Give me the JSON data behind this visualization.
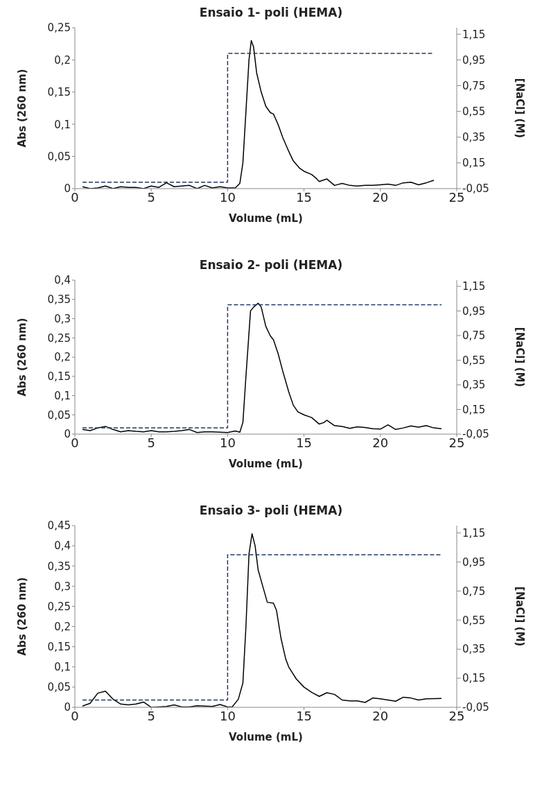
{
  "chart_data": [
    {
      "type": "line",
      "title": "Ensaio 1- poli (HEMA)",
      "xlabel": "Volume (mL)",
      "ylabel": "Abs (260 nm)",
      "y2label": "[NaCl] (M)",
      "xlim": [
        0,
        25
      ],
      "xticks": [
        0,
        5,
        10,
        15,
        20,
        25
      ],
      "ylim": [
        0,
        0.25
      ],
      "yticks": [
        {
          "value": 0,
          "label": "0"
        },
        {
          "value": 0.05,
          "label": "0,05"
        },
        {
          "value": 0.1,
          "label": "0,1"
        },
        {
          "value": 0.15,
          "label": "0,15"
        },
        {
          "value": 0.2,
          "label": "0,2"
        },
        {
          "value": 0.25,
          "label": "0,25"
        }
      ],
      "y2lim": [
        -0.05,
        1.2
      ],
      "y2ticks": [
        {
          "value": -0.05,
          "label": "-0,05"
        },
        {
          "value": 0.15,
          "label": "0,15"
        },
        {
          "value": 0.35,
          "label": "0,35"
        },
        {
          "value": 0.55,
          "label": "0,55"
        },
        {
          "value": 0.75,
          "label": "0,75"
        },
        {
          "value": 0.95,
          "label": "0,95"
        },
        {
          "value": 1.15,
          "label": "1,15"
        }
      ],
      "grid": false,
      "legend": false,
      "marker": "none",
      "series": [
        {
          "color": "#000000",
          "line_style": "solid",
          "x": [
            0.5,
            1,
            1.5,
            2,
            2.5,
            3,
            3.5,
            4,
            4.5,
            5,
            5.5,
            6,
            6.5,
            7,
            7.5,
            8,
            8.5,
            9,
            9.5,
            10,
            10.5,
            10.8,
            11,
            11.2,
            11.4,
            11.55,
            11.7,
            11.9,
            12.2,
            12.5,
            12.8,
            13,
            13.3,
            13.6,
            14,
            14.3,
            14.7,
            15,
            15.5,
            15.8,
            16,
            16.5,
            17,
            17.5,
            18,
            18.5,
            19,
            19.5,
            20,
            20.5,
            21,
            21.5,
            22,
            22.5,
            23,
            23.5
          ],
          "values": [
            0.003,
            0,
            0.001,
            0.004,
            0,
            0.003,
            0.002,
            0.002,
            0,
            0.004,
            0.002,
            0.009,
            0.003,
            0.004,
            0.005,
            0,
            0.005,
            0.001,
            0.003,
            0.001,
            0.001,
            0.008,
            0.04,
            0.12,
            0.2,
            0.23,
            0.22,
            0.18,
            0.15,
            0.128,
            0.118,
            0.116,
            0.1,
            0.08,
            0.058,
            0.043,
            0.032,
            0.027,
            0.022,
            0.016,
            0.011,
            0.015,
            0.005,
            0.008,
            0.005,
            0.004,
            0.005,
            0.005,
            0.006,
            0.007,
            0.005,
            0.009,
            0.01,
            0.006,
            0.009,
            0.013
          ]
        },
        {
          "type": "step",
          "color": "#1f3864",
          "line_style": "dashed",
          "axis": "y2",
          "x": [
            0.5,
            10,
            23.5
          ],
          "values": [
            0,
            1,
            1
          ]
        }
      ]
    },
    {
      "type": "line",
      "title": "Ensaio 2- poli (HEMA)",
      "xlabel": "Volume (mL)",
      "ylabel": "Abs (260 nm)",
      "y2label": "[NaCl] (M)",
      "xlim": [
        0,
        25
      ],
      "xticks": [
        0,
        5,
        10,
        15,
        20,
        25
      ],
      "ylim": [
        0,
        0.4
      ],
      "yticks": [
        {
          "value": 0,
          "label": "0"
        },
        {
          "value": 0.05,
          "label": "0,05"
        },
        {
          "value": 0.1,
          "label": "0,1"
        },
        {
          "value": 0.15,
          "label": "0,15"
        },
        {
          "value": 0.2,
          "label": "0,2"
        },
        {
          "value": 0.25,
          "label": "0,25"
        },
        {
          "value": 0.3,
          "label": "0,3"
        },
        {
          "value": 0.35,
          "label": "0,35"
        },
        {
          "value": 0.4,
          "label": "0,4"
        }
      ],
      "y2lim": [
        -0.05,
        1.2
      ],
      "y2ticks": [
        {
          "value": -0.05,
          "label": "-0,05"
        },
        {
          "value": 0.15,
          "label": "0,15"
        },
        {
          "value": 0.35,
          "label": "0,35"
        },
        {
          "value": 0.55,
          "label": "0,55"
        },
        {
          "value": 0.75,
          "label": "0,75"
        },
        {
          "value": 0.95,
          "label": "0,95"
        },
        {
          "value": 1.15,
          "label": "1,15"
        }
      ],
      "grid": false,
      "legend": false,
      "marker": "none",
      "series": [
        {
          "color": "#000000",
          "line_style": "solid",
          "x": [
            0.5,
            1,
            1.5,
            2,
            2.5,
            3,
            3.5,
            4,
            4.5,
            5,
            5.5,
            6,
            6.5,
            7,
            7.5,
            8,
            8.5,
            9,
            9.5,
            10,
            10.5,
            10.8,
            11,
            11.2,
            11.5,
            11.7,
            12,
            12.2,
            12.5,
            12.8,
            13,
            13.3,
            13.6,
            14,
            14.3,
            14.6,
            15,
            15.5,
            16,
            16.3,
            16.5,
            17,
            17.5,
            18,
            18.5,
            19,
            19.5,
            20,
            20.5,
            21,
            21.5,
            22,
            22.5,
            23,
            23.5,
            24
          ],
          "values": [
            0.012,
            0.009,
            0.016,
            0.02,
            0.012,
            0.006,
            0.009,
            0.007,
            0.006,
            0.009,
            0.006,
            0.006,
            0.007,
            0.009,
            0.012,
            0.004,
            0.006,
            0.006,
            0.005,
            0.004,
            0.008,
            0.005,
            0.03,
            0.15,
            0.32,
            0.33,
            0.34,
            0.33,
            0.28,
            0.255,
            0.245,
            0.21,
            0.165,
            0.11,
            0.075,
            0.058,
            0.05,
            0.043,
            0.026,
            0.03,
            0.036,
            0.022,
            0.02,
            0.015,
            0.019,
            0.017,
            0.014,
            0.013,
            0.024,
            0.012,
            0.016,
            0.021,
            0.018,
            0.022,
            0.016,
            0.014
          ]
        },
        {
          "type": "step",
          "color": "#1f3864",
          "line_style": "dashed",
          "axis": "y2",
          "x": [
            0.5,
            10,
            24
          ],
          "values": [
            0,
            1,
            1
          ]
        }
      ]
    },
    {
      "type": "line",
      "title": "Ensaio 3- poli (HEMA)",
      "xlabel": "Volume (mL)",
      "ylabel": "Abs (260 nm)",
      "y2label": "[NaCl] (M)",
      "xlim": [
        0,
        25
      ],
      "xticks": [
        0,
        5,
        10,
        15,
        20,
        25
      ],
      "ylim": [
        0,
        0.45
      ],
      "yticks": [
        {
          "value": 0,
          "label": "0"
        },
        {
          "value": 0.05,
          "label": "0,05"
        },
        {
          "value": 0.1,
          "label": "0,1"
        },
        {
          "value": 0.15,
          "label": "0,15"
        },
        {
          "value": 0.2,
          "label": "0,2"
        },
        {
          "value": 0.25,
          "label": "0,25"
        },
        {
          "value": 0.3,
          "label": "0,3"
        },
        {
          "value": 0.35,
          "label": "0,35"
        },
        {
          "value": 0.4,
          "label": "0,4"
        },
        {
          "value": 0.45,
          "label": "0,45"
        }
      ],
      "y2lim": [
        -0.05,
        1.2
      ],
      "y2ticks": [
        {
          "value": -0.05,
          "label": "-0,05"
        },
        {
          "value": 0.15,
          "label": "0,15"
        },
        {
          "value": 0.35,
          "label": "0,35"
        },
        {
          "value": 0.55,
          "label": "0,55"
        },
        {
          "value": 0.75,
          "label": "0,75"
        },
        {
          "value": 0.95,
          "label": "0,95"
        },
        {
          "value": 1.15,
          "label": "1,15"
        }
      ],
      "grid": false,
      "legend": false,
      "marker": "none",
      "series": [
        {
          "color": "#000000",
          "line_style": "solid",
          "x": [
            0.5,
            1,
            1.5,
            2,
            2.5,
            3,
            3.5,
            4,
            4.5,
            5,
            5.5,
            6,
            6.5,
            7,
            7.5,
            8,
            8.5,
            9,
            9.5,
            10,
            10.3,
            10.7,
            11,
            11.2,
            11.4,
            11.6,
            11.8,
            12,
            12.3,
            12.6,
            13,
            13.2,
            13.5,
            13.8,
            14,
            14.5,
            15,
            15.5,
            16,
            16.5,
            17,
            17.5,
            18,
            18.5,
            19,
            19.5,
            20,
            20.5,
            21,
            21.5,
            22,
            22.5,
            23,
            24
          ],
          "values": [
            0.003,
            0.01,
            0.035,
            0.04,
            0.02,
            0.008,
            0.006,
            0.008,
            0.013,
            0,
            0.001,
            0.002,
            0.006,
            0.001,
            0.001,
            0.004,
            0.003,
            0.002,
            0.007,
            0.001,
            0.001,
            0.02,
            0.06,
            0.2,
            0.38,
            0.43,
            0.4,
            0.34,
            0.3,
            0.26,
            0.258,
            0.24,
            0.17,
            0.12,
            0.1,
            0.07,
            0.05,
            0.037,
            0.027,
            0.036,
            0.032,
            0.018,
            0.016,
            0.016,
            0.012,
            0.023,
            0.021,
            0.018,
            0.015,
            0.025,
            0.023,
            0.018,
            0.021,
            0.022
          ]
        },
        {
          "type": "step",
          "color": "#1f3864",
          "line_style": "dashed",
          "axis": "y2",
          "x": [
            0.5,
            10,
            24
          ],
          "values": [
            0,
            1,
            1
          ]
        }
      ]
    }
  ]
}
